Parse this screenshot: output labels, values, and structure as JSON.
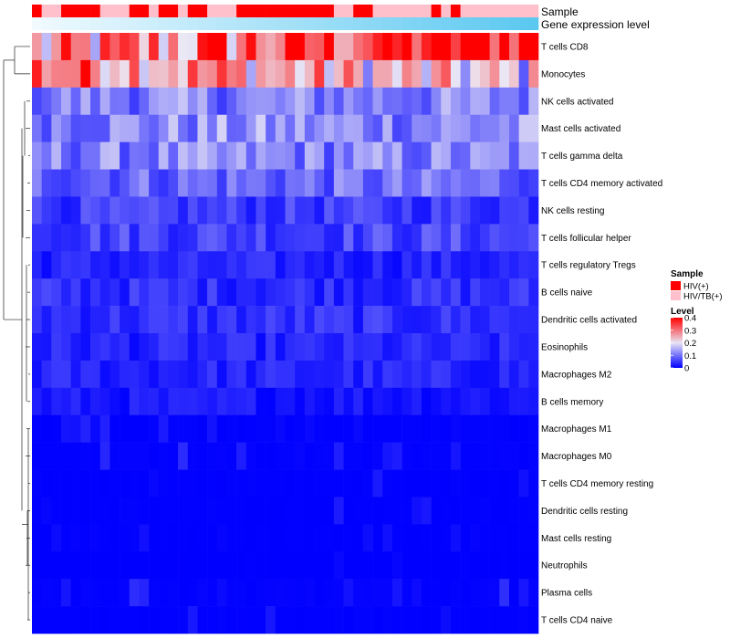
{
  "chart_data": {
    "type": "heatmap",
    "title": "",
    "annotations": {
      "sample_label": "Sample",
      "gene_label": "Gene expression level",
      "sample_groups": [
        0,
        1,
        1,
        0,
        0,
        0,
        0,
        1,
        1,
        1,
        0,
        0,
        1,
        0,
        0,
        1,
        0,
        0,
        1,
        1,
        1,
        0,
        0,
        0,
        0,
        0,
        0,
        0,
        0,
        0,
        0,
        1,
        1,
        0,
        0,
        1,
        1,
        1,
        1,
        1,
        1,
        0,
        1,
        0,
        1,
        1,
        1,
        1,
        1,
        1,
        1,
        1
      ],
      "gene_gradient": [
        "#ffffff",
        "#5bc8f0"
      ]
    },
    "rows": [
      "T cells CD8",
      "Monocytes",
      "NK cells activated",
      "Mast cells activated",
      "T cells gamma delta",
      "T cells CD4 memory activated",
      "NK cells resting",
      "T cells follicular helper",
      "T cells regulatory  Tregs",
      "B cells naive",
      "Dendritic cells activated",
      "Eosinophils",
      "Macrophages M2",
      "B cells memory",
      "Macrophages M1",
      "Macrophages M0",
      "T cells CD4 memory resting",
      "Dendritic cells resting",
      "Mast cells resting",
      "Neutrophils",
      "Plasma cells",
      "T cells CD4 naive"
    ],
    "n_columns": 52,
    "row_means": [
      0.33,
      0.25,
      0.11,
      0.12,
      0.11,
      0.09,
      0.05,
      0.06,
      0.03,
      0.04,
      0.04,
      0.03,
      0.03,
      0.02,
      0.015,
      0.02,
      0.01,
      0.01,
      0.005,
      0.003,
      0.025,
      0.01
    ],
    "col_trend": [
      0.22,
      -0.15,
      0,
      0,
      0,
      0,
      0,
      0,
      0,
      0,
      0,
      0,
      0,
      0,
      0,
      0,
      0,
      0,
      0,
      0,
      0,
      0
    ],
    "value_range": [
      0,
      0.4
    ],
    "legend": {
      "sample_title": "Sample",
      "sample_entries": [
        {
          "label": "HIV(+)",
          "color": "#ff0000"
        },
        {
          "label": "HIV/TB(+)",
          "color": "#ffc0cb"
        }
      ],
      "level_title": "Level",
      "level_ticks": [
        "0.4",
        "0.3",
        "0.2",
        "0.1",
        "0"
      ],
      "level_tick_values": [
        0.4,
        0.3,
        0.2,
        0.1,
        0
      ]
    },
    "colors": {
      "low": "#0000ff",
      "mid": "#ffffff",
      "high": "#ff0000",
      "hiv": "#ff0000",
      "hivtb": "#ffc0cb"
    }
  }
}
